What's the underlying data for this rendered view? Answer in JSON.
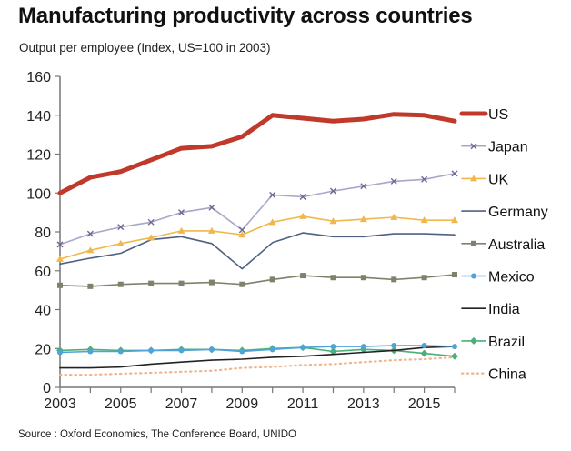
{
  "chart_data": {
    "type": "line",
    "title": "Manufacturing productivity across countries",
    "subtitle": "Output per employee (Index, US=100 in 2003)",
    "source": "Source : Oxford Economics, The Conference Board, UNIDO",
    "xlabel": "",
    "ylabel": "Output per employee (Index, US=100 in 2003)",
    "x": [
      2003,
      2004,
      2005,
      2006,
      2007,
      2008,
      2009,
      2010,
      2011,
      2012,
      2013,
      2014,
      2015,
      2016
    ],
    "x_tick_labels": [
      "2003",
      "2005",
      "2007",
      "2009",
      "2011",
      "2013",
      "2015"
    ],
    "y_ticks": [
      0,
      20,
      40,
      60,
      80,
      100,
      120,
      140,
      160
    ],
    "ylim": [
      0,
      160
    ],
    "xlim": [
      2003,
      2016
    ],
    "grid": false,
    "legend_position": "right",
    "series": [
      {
        "name": "US",
        "color": "#c0392b",
        "style": "thick",
        "marker": "none",
        "values": [
          100,
          108,
          111,
          117,
          123,
          124,
          129,
          140,
          138.5,
          137,
          138,
          140.5,
          140,
          137
        ]
      },
      {
        "name": "Japan",
        "color": "#a9a6c9",
        "style": "solid",
        "marker": "x",
        "values": [
          73.5,
          79,
          82.5,
          85,
          90,
          92.5,
          81,
          99,
          98,
          101,
          103.5,
          106,
          107,
          110
        ]
      },
      {
        "name": "UK",
        "color": "#f0b84a",
        "style": "solid",
        "marker": "triangle",
        "values": [
          66,
          70.5,
          74,
          77,
          80.5,
          80.5,
          78.5,
          85,
          88,
          85.5,
          86.5,
          87.5,
          86,
          86
        ]
      },
      {
        "name": "Germany",
        "color": "#4f6182",
        "style": "solid",
        "marker": "none",
        "values": [
          63.5,
          66.5,
          69,
          76,
          77.5,
          74,
          61,
          74.5,
          79.5,
          77.5,
          77.5,
          79,
          79,
          78.5
        ]
      },
      {
        "name": "Australia",
        "color": "#7f826a",
        "style": "solid",
        "marker": "square",
        "values": [
          52.5,
          52,
          53,
          53.5,
          53.5,
          54,
          53,
          55.5,
          57.5,
          56.5,
          56.5,
          55.5,
          56.5,
          58
        ]
      },
      {
        "name": "Mexico",
        "color": "#4fa3d9",
        "style": "solid",
        "marker": "circle",
        "values": [
          18,
          18.5,
          18.5,
          19,
          19,
          19.5,
          18.5,
          19.5,
          20.5,
          21,
          21,
          21.5,
          21.5,
          21
        ]
      },
      {
        "name": "India",
        "color": "#222222",
        "style": "solid",
        "marker": "none",
        "values": [
          10,
          10,
          10.5,
          12,
          13,
          14,
          14.5,
          15.5,
          16,
          17,
          18,
          19,
          20.5,
          21
        ]
      },
      {
        "name": "Brazil",
        "color": "#4caf78",
        "style": "solid",
        "marker": "diamond",
        "values": [
          19,
          19.5,
          19,
          19,
          19.5,
          19.5,
          19,
          20,
          20.5,
          18.5,
          19.5,
          19,
          17.5,
          16
        ]
      },
      {
        "name": "China",
        "color": "#f2b48a",
        "style": "dotted",
        "marker": "none",
        "values": [
          6.5,
          6.5,
          7,
          7.5,
          8,
          8.5,
          10,
          10.5,
          11.5,
          12,
          13,
          14,
          14.5,
          15.5
        ]
      }
    ]
  }
}
